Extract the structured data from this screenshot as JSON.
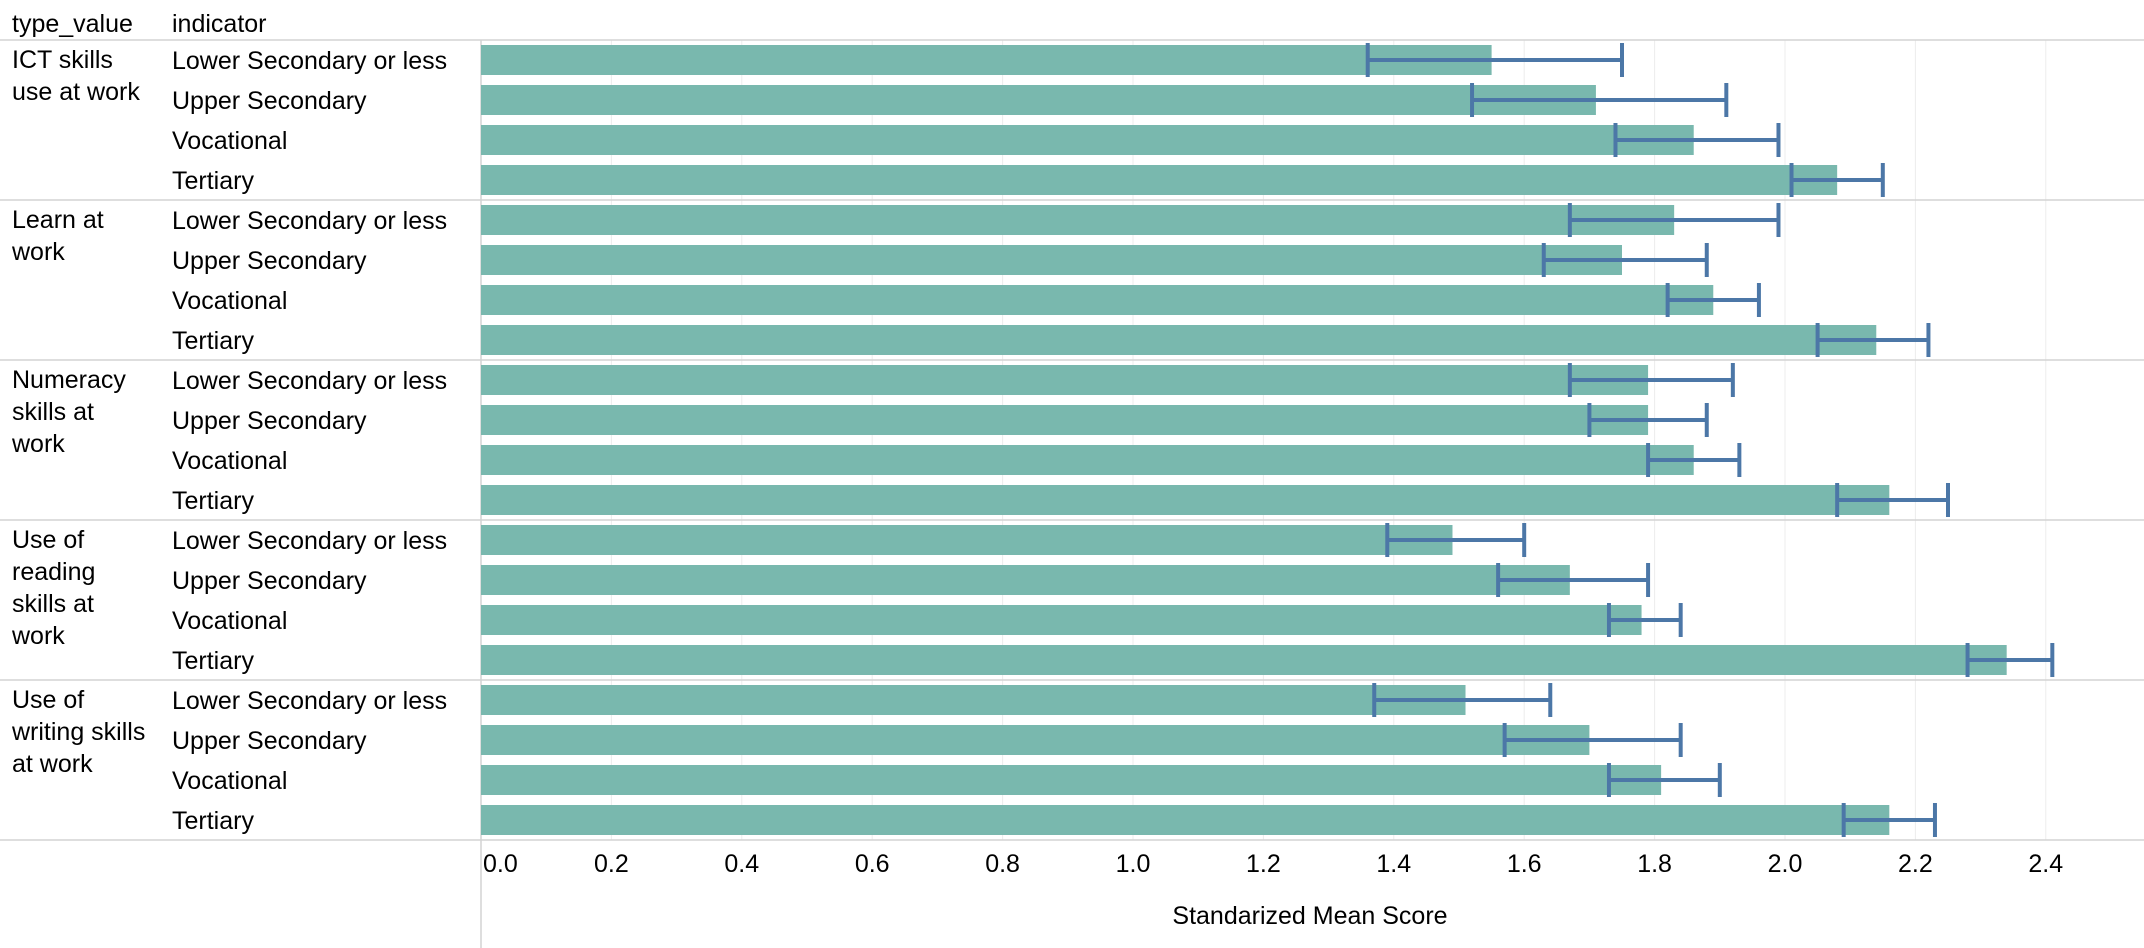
{
  "chart_data": {
    "type": "bar",
    "orientation": "horizontal",
    "row_headers": [
      "type_value",
      "indicator"
    ],
    "xlabel": "Standarized Mean Score",
    "xlim": [
      0,
      2.5
    ],
    "xticks": [
      "0.0",
      "0.2",
      "0.4",
      "0.6",
      "0.8",
      "1.0",
      "1.2",
      "1.4",
      "1.6",
      "1.8",
      "2.0",
      "2.2",
      "2.4"
    ],
    "bar_color": "#79b8ae",
    "error_color": "#4c77a7",
    "groups": [
      {
        "label": "ICT skills use at work",
        "label_lines": [
          "ICT skills",
          "use at work"
        ],
        "bars": [
          {
            "category": "Lower Secondary or less",
            "value": 1.55,
            "err_low": 1.36,
            "err_high": 1.75
          },
          {
            "category": "Upper Secondary",
            "value": 1.71,
            "err_low": 1.52,
            "err_high": 1.91
          },
          {
            "category": "Vocational",
            "value": 1.86,
            "err_low": 1.74,
            "err_high": 1.99
          },
          {
            "category": "Tertiary",
            "value": 2.08,
            "err_low": 2.01,
            "err_high": 2.15
          }
        ]
      },
      {
        "label": "Learn at work",
        "label_lines": [
          "Learn at",
          "work"
        ],
        "bars": [
          {
            "category": "Lower Secondary or less",
            "value": 1.83,
            "err_low": 1.67,
            "err_high": 1.99
          },
          {
            "category": "Upper Secondary",
            "value": 1.75,
            "err_low": 1.63,
            "err_high": 1.88
          },
          {
            "category": "Vocational",
            "value": 1.89,
            "err_low": 1.82,
            "err_high": 1.96
          },
          {
            "category": "Tertiary",
            "value": 2.14,
            "err_low": 2.05,
            "err_high": 2.22
          }
        ]
      },
      {
        "label": "Numeracy skills at work",
        "label_lines": [
          "Numeracy",
          "skills at",
          "work"
        ],
        "bars": [
          {
            "category": "Lower Secondary or less",
            "value": 1.79,
            "err_low": 1.67,
            "err_high": 1.92
          },
          {
            "category": "Upper Secondary",
            "value": 1.79,
            "err_low": 1.7,
            "err_high": 1.88
          },
          {
            "category": "Vocational",
            "value": 1.86,
            "err_low": 1.79,
            "err_high": 1.93
          },
          {
            "category": "Tertiary",
            "value": 2.16,
            "err_low": 2.08,
            "err_high": 2.25
          }
        ]
      },
      {
        "label": "Use of reading skills at work",
        "label_lines": [
          "Use of",
          "reading",
          "skills at",
          "work"
        ],
        "bars": [
          {
            "category": "Lower Secondary or less",
            "value": 1.49,
            "err_low": 1.39,
            "err_high": 1.6
          },
          {
            "category": "Upper Secondary",
            "value": 1.67,
            "err_low": 1.56,
            "err_high": 1.79
          },
          {
            "category": "Vocational",
            "value": 1.78,
            "err_low": 1.73,
            "err_high": 1.84
          },
          {
            "category": "Tertiary",
            "value": 2.34,
            "err_low": 2.28,
            "err_high": 2.41
          }
        ]
      },
      {
        "label": "Use of writing skills at work",
        "label_lines": [
          "Use of",
          "writing skills",
          "at work"
        ],
        "bars": [
          {
            "category": "Lower Secondary or less",
            "value": 1.51,
            "err_low": 1.37,
            "err_high": 1.64
          },
          {
            "category": "Upper Secondary",
            "value": 1.7,
            "err_low": 1.57,
            "err_high": 1.84
          },
          {
            "category": "Vocational",
            "value": 1.81,
            "err_low": 1.73,
            "err_high": 1.9
          },
          {
            "category": "Tertiary",
            "value": 2.16,
            "err_low": 2.09,
            "err_high": 2.23
          }
        ]
      }
    ]
  }
}
